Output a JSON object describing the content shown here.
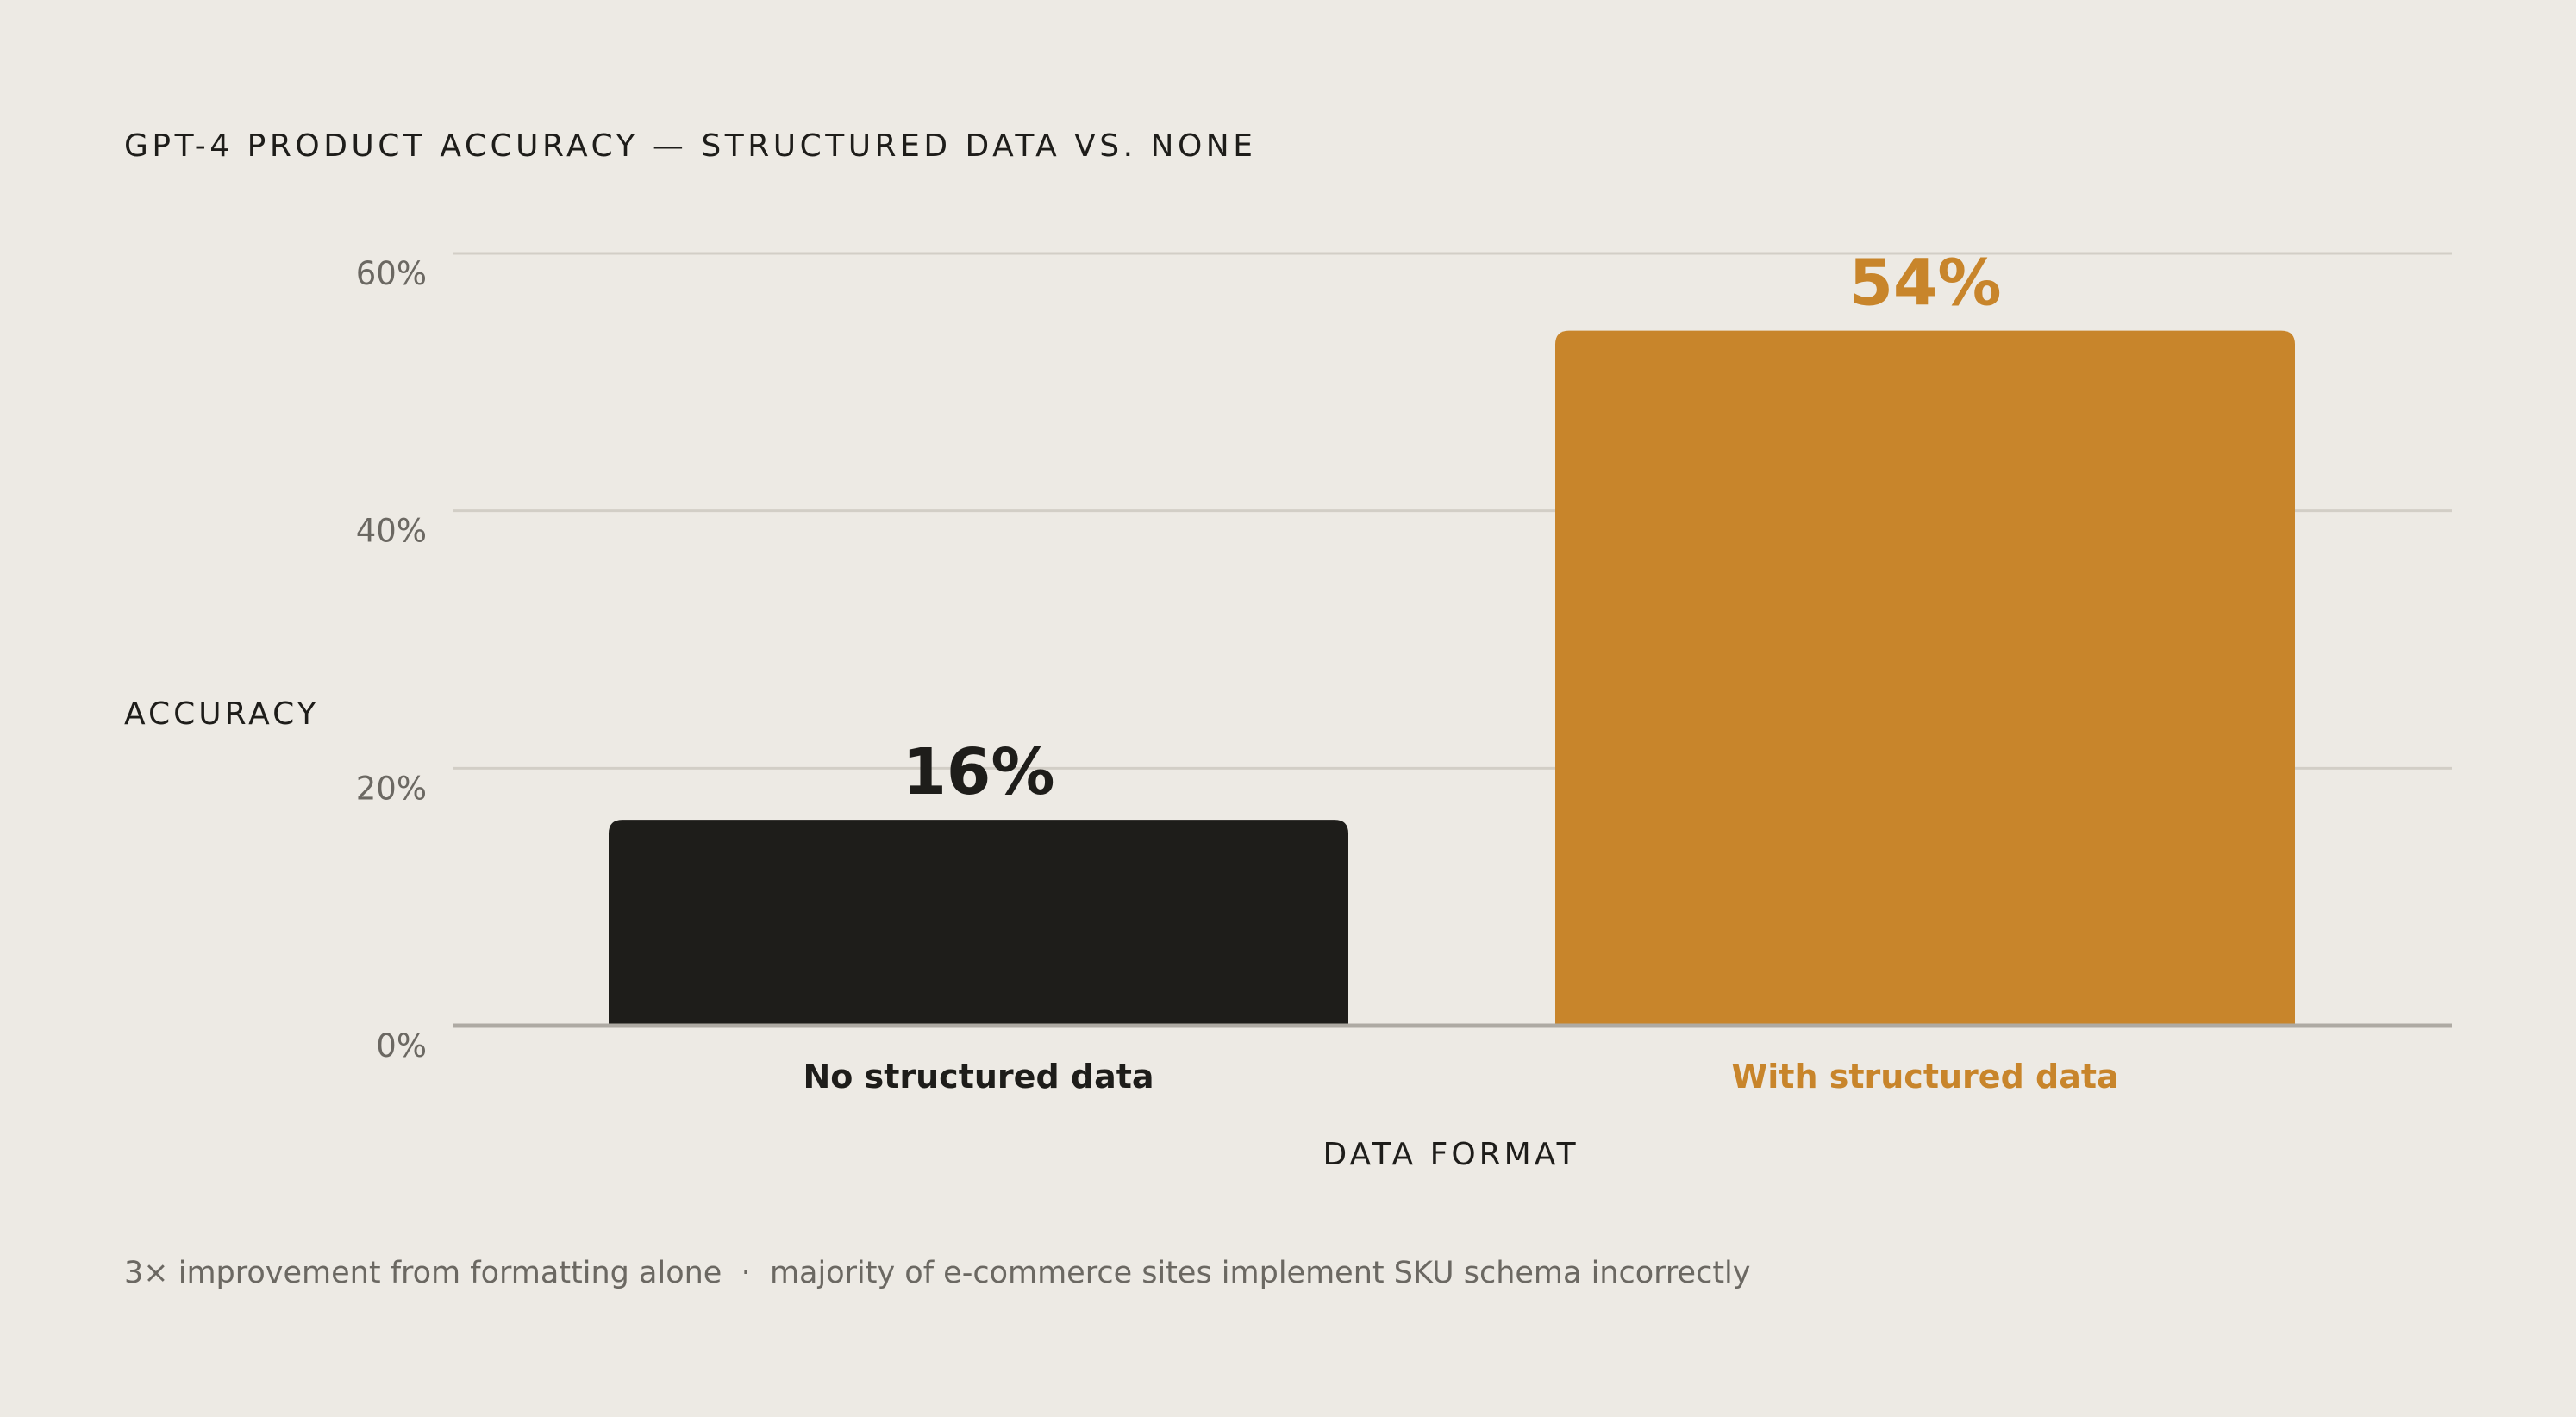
{
  "chart_data": {
    "type": "bar",
    "title": "GPT-4 PRODUCT ACCURACY — STRUCTURED DATA VS. NONE",
    "xlabel": "DATA FORMAT",
    "ylabel": "ACCURACY",
    "categories": [
      "No structured data",
      "With structured data"
    ],
    "values": [
      16,
      54
    ],
    "value_labels": [
      "16%",
      "54%"
    ],
    "colors": [
      "#1E1D1A",
      "#C8852B"
    ],
    "ylim": [
      0,
      60
    ],
    "yticks": [
      0,
      20,
      40,
      60
    ],
    "ytick_labels": [
      "0%",
      "20%",
      "40%",
      "60%"
    ],
    "grid": true,
    "footnote": "3× improvement from formatting alone  ·  majority of e-commerce sites implement SKU schema incorrectly"
  }
}
